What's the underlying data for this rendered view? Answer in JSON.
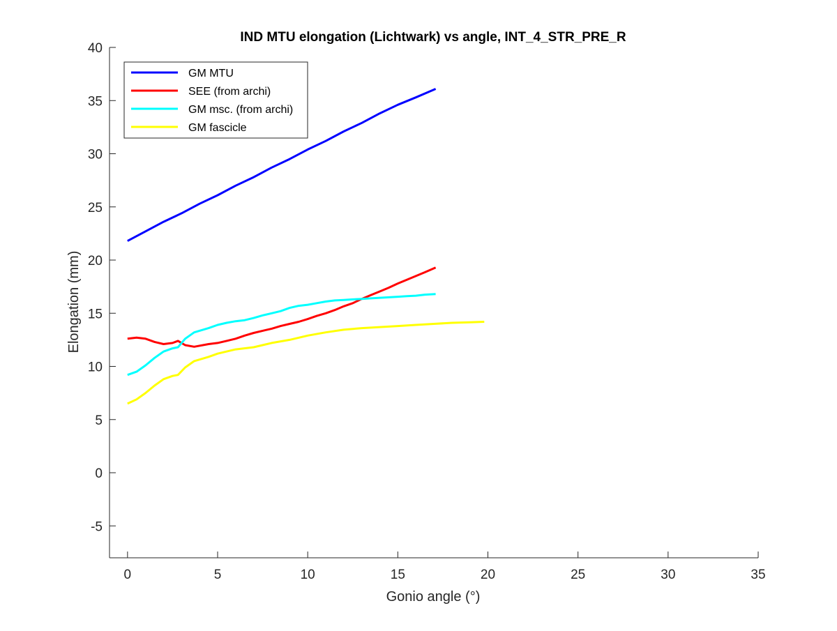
{
  "chart_data": {
    "type": "line",
    "title": "IND MTU elongation (Lichtwark) vs angle, INT_4_STR_PRE_R",
    "xlabel": "Gonio angle (°)",
    "ylabel": "Elongation (mm)",
    "xlim": [
      -1,
      35
    ],
    "ylim": [
      -8,
      40
    ],
    "xticks": [
      0,
      5,
      10,
      15,
      20,
      25,
      30,
      35
    ],
    "yticks": [
      -5,
      0,
      5,
      10,
      15,
      20,
      25,
      30,
      35,
      40
    ],
    "xtick_labels": [
      "0",
      "5",
      "10",
      "15",
      "20",
      "25",
      "30",
      "35"
    ],
    "ytick_labels": [
      "-5",
      "0",
      "5",
      "10",
      "15",
      "20",
      "25",
      "30",
      "35",
      "40"
    ],
    "grid": false,
    "legend_position": "top-left",
    "series": [
      {
        "name": "GM MTU",
        "color": "#0000ff",
        "x": [
          0,
          1,
          2,
          3,
          4,
          5,
          6,
          7,
          8,
          9,
          10,
          11,
          12,
          13,
          14,
          15,
          16,
          17.1
        ],
        "y": [
          21.8,
          22.7,
          23.6,
          24.4,
          25.3,
          26.1,
          27.0,
          27.8,
          28.7,
          29.5,
          30.4,
          31.2,
          32.1,
          32.9,
          33.8,
          34.6,
          35.3,
          36.1
        ]
      },
      {
        "name": "SEE (from archi)",
        "color": "#ff0000",
        "x": [
          0,
          0.5,
          1,
          1.5,
          2,
          2.5,
          2.8,
          3.2,
          3.7,
          4.5,
          5,
          5.5,
          6,
          6.5,
          7,
          7.5,
          8,
          8.5,
          9,
          9.5,
          10,
          10.5,
          11,
          11.5,
          12,
          12.5,
          13,
          13.5,
          14,
          14.5,
          15,
          15.5,
          16,
          16.5,
          17.1
        ],
        "y": [
          12.6,
          12.7,
          12.6,
          12.3,
          12.1,
          12.2,
          12.4,
          12.0,
          11.85,
          12.1,
          12.2,
          12.4,
          12.6,
          12.9,
          13.15,
          13.35,
          13.55,
          13.8,
          14.0,
          14.2,
          14.45,
          14.75,
          15.0,
          15.3,
          15.65,
          15.95,
          16.35,
          16.7,
          17.05,
          17.4,
          17.8,
          18.15,
          18.5,
          18.85,
          19.3
        ]
      },
      {
        "name": "GM msc. (from archi)",
        "color": "#00ffff",
        "x": [
          0,
          0.5,
          1,
          1.5,
          2,
          2.5,
          2.8,
          3.2,
          3.7,
          4.5,
          5,
          5.5,
          6,
          6.5,
          7,
          7.5,
          8,
          8.5,
          9,
          9.5,
          10,
          10.5,
          11,
          11.5,
          12,
          12.5,
          13,
          13.5,
          14,
          14.5,
          15,
          15.5,
          16,
          16.5,
          17.1
        ],
        "y": [
          9.2,
          9.5,
          10.1,
          10.8,
          11.4,
          11.7,
          11.8,
          12.6,
          13.2,
          13.6,
          13.9,
          14.1,
          14.25,
          14.35,
          14.55,
          14.8,
          15.0,
          15.2,
          15.5,
          15.7,
          15.8,
          15.95,
          16.1,
          16.2,
          16.25,
          16.3,
          16.35,
          16.4,
          16.45,
          16.5,
          16.55,
          16.6,
          16.65,
          16.75,
          16.8
        ]
      },
      {
        "name": "GM fascicle",
        "color": "#ffff00",
        "x": [
          0,
          0.5,
          1,
          1.5,
          2,
          2.5,
          2.8,
          3.2,
          3.7,
          4.5,
          5,
          6,
          7,
          8,
          9,
          10,
          11,
          12,
          13,
          14,
          15,
          16,
          17,
          18,
          19,
          19.8
        ],
        "y": [
          6.5,
          6.9,
          7.5,
          8.2,
          8.8,
          9.1,
          9.2,
          9.9,
          10.5,
          10.9,
          11.2,
          11.6,
          11.8,
          12.2,
          12.5,
          12.9,
          13.2,
          13.45,
          13.6,
          13.7,
          13.8,
          13.9,
          14.0,
          14.1,
          14.15,
          14.2
        ]
      }
    ]
  }
}
